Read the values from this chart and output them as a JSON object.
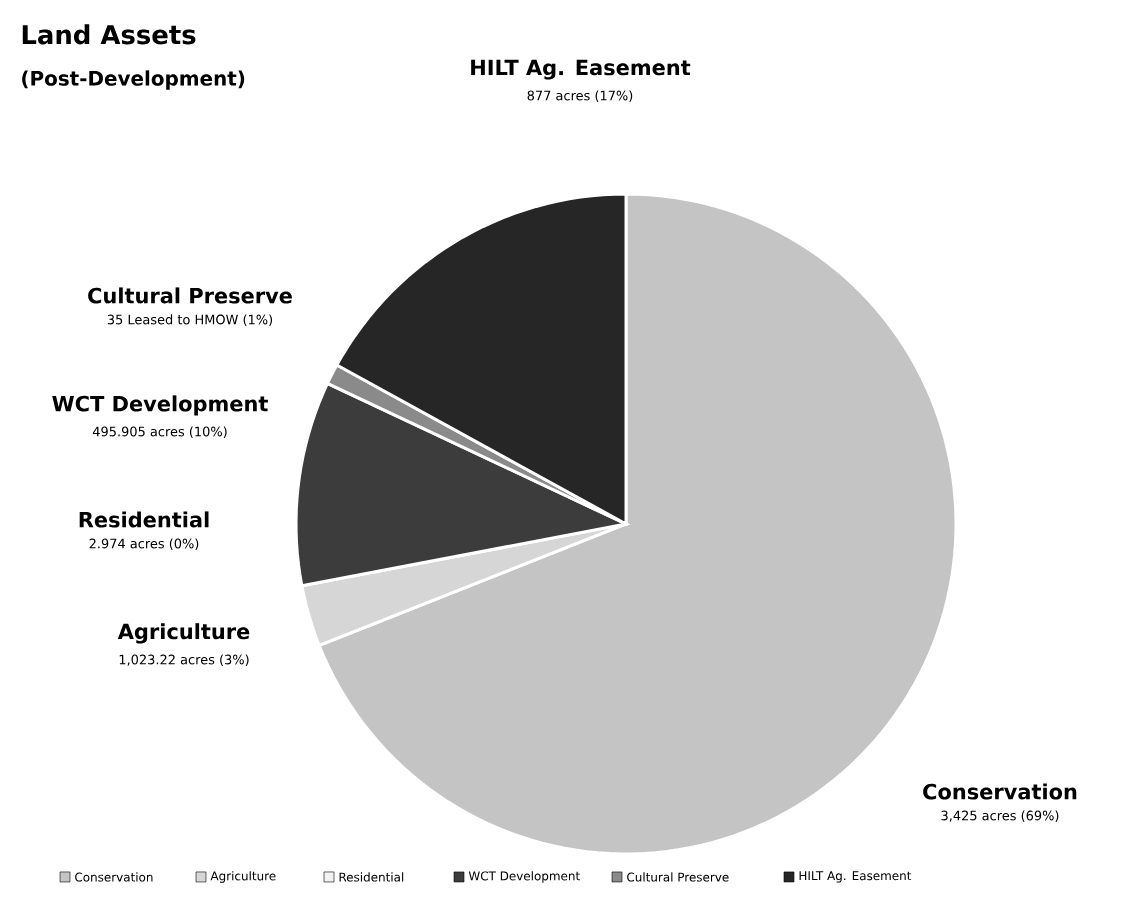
{
  "chart_data": {
    "type": "pie",
    "title": "Land Assets",
    "subtitle": "(Post-Development)",
    "categories": [
      "Conservation",
      "Agriculture",
      "Residential",
      "WCT Development",
      "Cultural Preserve",
      "HILT Ag. Easement"
    ],
    "values": [
      69,
      3,
      0,
      10,
      1,
      17
    ],
    "colors": [
      "#c4c4c4",
      "#d6d6d6",
      "#f2f2f2",
      "#3c3c3c",
      "#8a8a8a",
      "#262626"
    ],
    "value_labels": [
      "3,425 acres (69%)",
      "1,023.22 acres (3%)",
      "2.974 acres (0%)",
      "495.905 acres (10%)",
      "35 Leased to HMOW (1%)",
      "877 acres (17%)"
    ],
    "legend": "bottom"
  }
}
